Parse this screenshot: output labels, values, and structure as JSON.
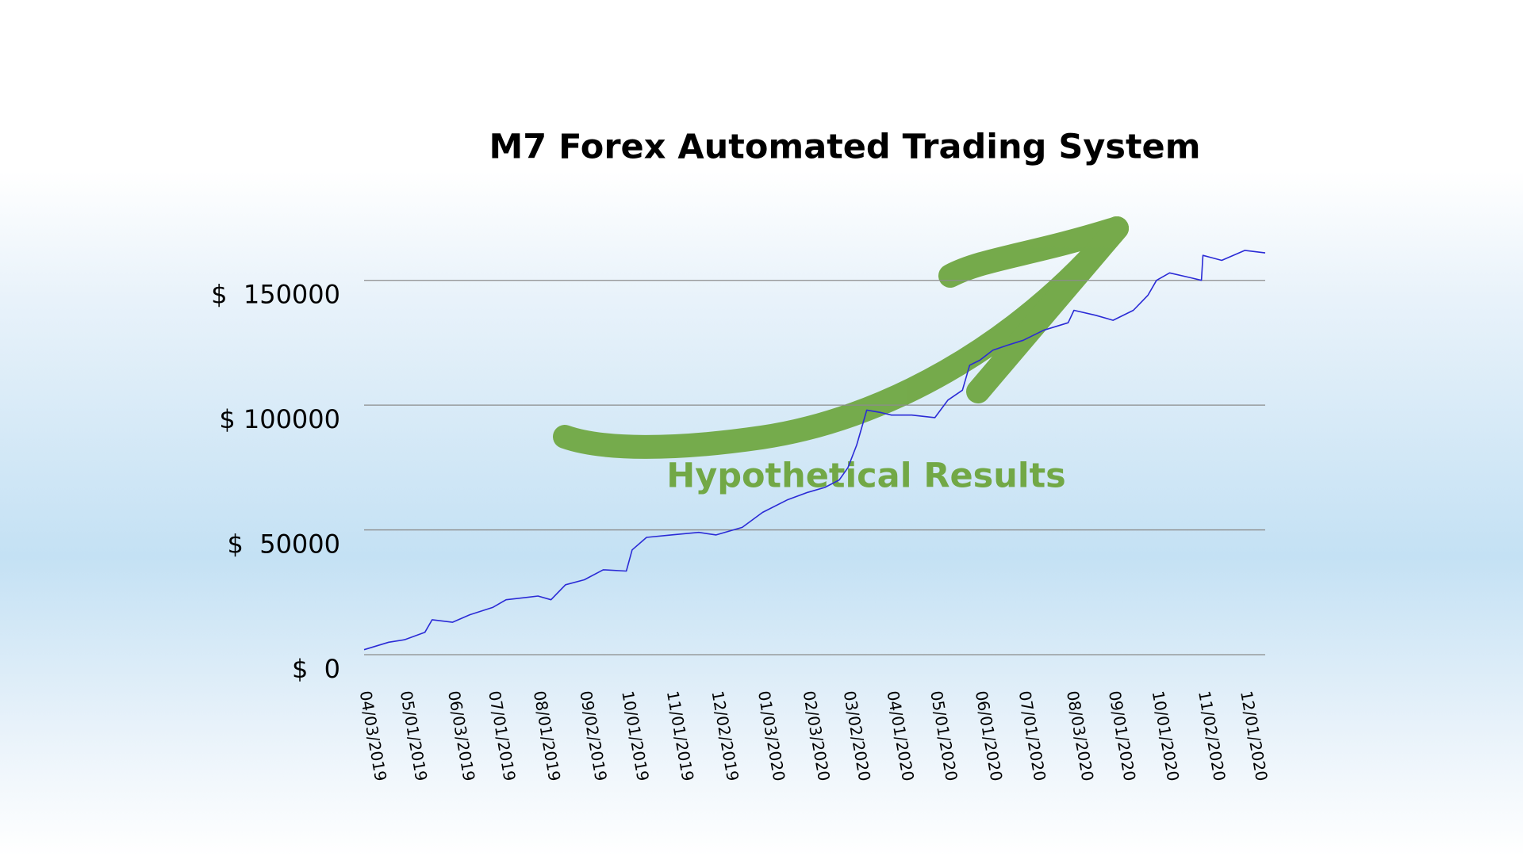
{
  "chart_data": {
    "type": "line",
    "title": "M7 Forex Automated Trading System",
    "annotation": "Hypothetical Results",
    "x": [
      "04/03/2019",
      "04/20/2019",
      "05/01/2019",
      "05/15/2019",
      "05/20/2019",
      "06/03/2019",
      "06/15/2019",
      "07/01/2019",
      "07/10/2019",
      "07/25/2019",
      "08/01/2019",
      "08/10/2019",
      "08/20/2019",
      "09/02/2019",
      "09/15/2019",
      "10/01/2019",
      "10/05/2019",
      "10/15/2019",
      "11/01/2019",
      "11/20/2019",
      "12/02/2019",
      "12/20/2019",
      "01/03/2020",
      "01/20/2020",
      "02/03/2020",
      "02/15/2020",
      "02/25/2020",
      "03/02/2020",
      "03/08/2020",
      "03/15/2020",
      "03/25/2020",
      "04/01/2020",
      "04/15/2020",
      "05/01/2020",
      "05/10/2020",
      "05/20/2020",
      "05/25/2020",
      "06/01/2020",
      "06/10/2020",
      "06/20/2020",
      "07/01/2020",
      "07/15/2020",
      "08/01/2020",
      "08/05/2020",
      "08/20/2020",
      "09/01/2020",
      "09/15/2020",
      "09/25/2020",
      "10/01/2020",
      "10/10/2020",
      "10/25/2020",
      "11/01/2020",
      "11/02/2020",
      "11/15/2020",
      "12/01/2020",
      "12/15/2020"
    ],
    "series": [
      {
        "color": "#2b2bd6",
        "values": [
          2000,
          5000,
          6000,
          9000,
          14000,
          13000,
          16000,
          19000,
          22000,
          23000,
          23500,
          22000,
          28000,
          30000,
          34000,
          33500,
          42000,
          47000,
          48000,
          49000,
          48000,
          51000,
          57000,
          62000,
          65000,
          67000,
          70000,
          75000,
          84000,
          98000,
          97000,
          96000,
          96000,
          95000,
          102000,
          106000,
          116000,
          118000,
          122000,
          124000,
          126000,
          130000,
          133000,
          138000,
          136000,
          134000,
          138000,
          144000,
          150000,
          153000,
          151000,
          150000,
          160000,
          158000,
          162000,
          161000
        ]
      }
    ],
    "xlim": [
      "04/03/2019",
      "12/15/2020"
    ],
    "xticks": [
      "04/03/2019",
      "05/01/2019",
      "06/03/2019",
      "07/01/2019",
      "08/01/2019",
      "09/02/2019",
      "10/01/2019",
      "11/01/2019",
      "12/02/2019",
      "01/03/2020",
      "02/03/2020",
      "03/02/2020",
      "04/01/2020",
      "05/01/2020",
      "06/01/2020",
      "07/01/2020",
      "08/03/2020",
      "09/01/2020",
      "10/01/2020",
      "11/02/2020",
      "12/01/2020"
    ],
    "ylim": [
      0,
      175000
    ],
    "yticks": [
      {
        "value": 0,
        "label": "$  0"
      },
      {
        "value": 50000,
        "label": "$  50000"
      },
      {
        "value": 100000,
        "label": "$ 100000"
      },
      {
        "value": 150000,
        "label": "$  150000"
      }
    ],
    "grid": true,
    "grid_color": "#8c8c8c",
    "annotation_color": "#72a846"
  }
}
